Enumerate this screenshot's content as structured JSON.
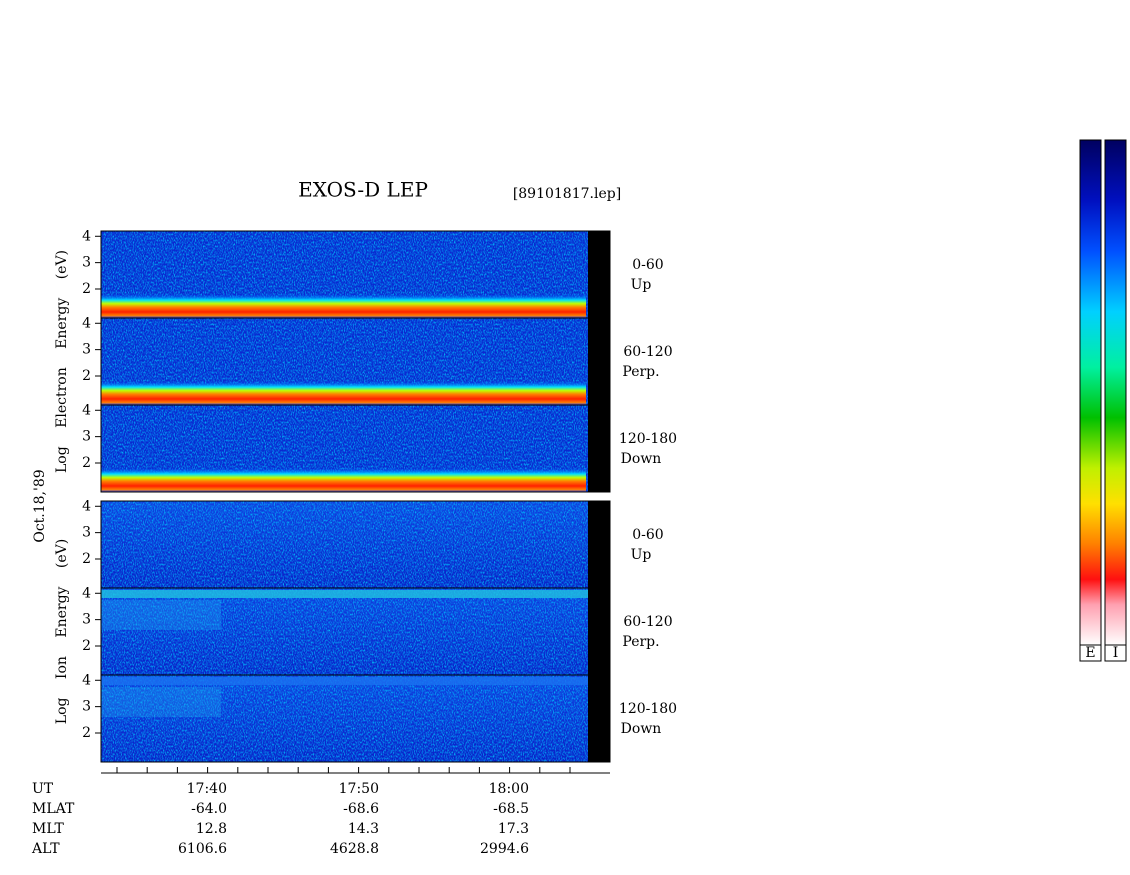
{
  "header": {
    "title": "EXOS-D LEP",
    "file": "[89101817.lep]",
    "date": "Oct.18,'89"
  },
  "energy_axis": {
    "ylim": [
      0.9,
      4.2
    ],
    "yticks": [
      2,
      3,
      4
    ]
  },
  "groups": [
    {
      "ylabel": "Log  Electron  Energy (eV)",
      "species": "electron",
      "panels": [
        {
          "range": "0-60",
          "dir": "Up"
        },
        {
          "range": "60-120",
          "dir": "Perp."
        },
        {
          "range": "120-180",
          "dir": "Down"
        }
      ]
    },
    {
      "ylabel": "Log  Ion  Energy (eV)",
      "species": "ion",
      "panels": [
        {
          "range": "0-60",
          "dir": "Up"
        },
        {
          "range": "60-120",
          "dir": "Perp."
        },
        {
          "range": "120-180",
          "dir": "Down"
        }
      ]
    }
  ],
  "time_axis": {
    "rows": [
      {
        "label": "UT",
        "values": [
          "17:40",
          "17:50",
          "18:00"
        ]
      },
      {
        "label": "MLAT",
        "values": [
          "-64.0",
          "-68.6",
          "-68.5"
        ]
      },
      {
        "label": "MLT",
        "values": [
          "12.8",
          "14.3",
          "17.3"
        ]
      },
      {
        "label": "ALT",
        "values": [
          "6106.6",
          "4628.8",
          "2994.6"
        ]
      }
    ]
  },
  "colorbars": {
    "labels": [
      "E",
      "I"
    ]
  }
}
